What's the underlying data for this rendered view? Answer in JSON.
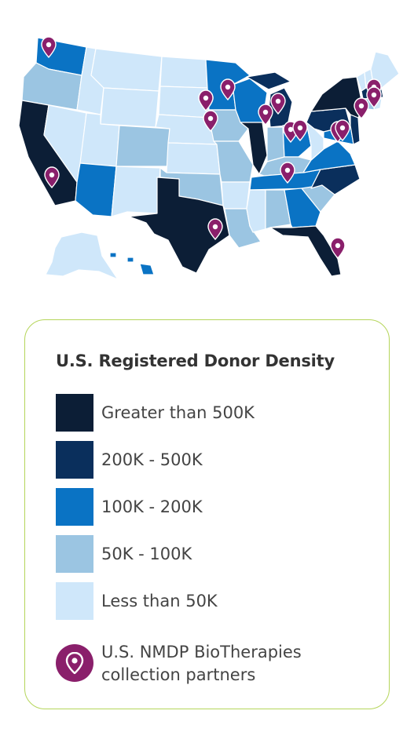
{
  "colors": {
    "greater_500k": "#0c1e36",
    "range_200k_500k": "#0a2f5c",
    "range_100k_200k": "#0a73c4",
    "range_50k_100k": "#9bc5e2",
    "less_50k": "#cfe7fa",
    "partner_pin": "#8a1f6b",
    "card_border": "#b5d55a"
  },
  "legend": {
    "title": "U.S. Registered Donor Density",
    "items": [
      {
        "label": "Greater than 500K",
        "color": "#0c1e36"
      },
      {
        "label": "200K - 500K",
        "color": "#0a2f5c"
      },
      {
        "label": "100K - 200K",
        "color": "#0a73c4"
      },
      {
        "label": "50K - 100K",
        "color": "#9bc5e2"
      },
      {
        "label": "Less than 50K",
        "color": "#cfe7fa"
      }
    ],
    "partners": {
      "line1": "U.S. NMDP BioTherapies",
      "line2": "collection partners",
      "icon": "map-pin-icon"
    }
  },
  "map": {
    "state_density": {
      "california": "Greater than 500K",
      "texas": "Greater than 500K",
      "florida": "Greater than 500K",
      "illinois": "Greater than 500K",
      "new-york": "Greater than 500K",
      "new-jersey": "200K - 500K",
      "washington": "100K - 200K",
      "arizona": "100K - 200K",
      "minnesota": "100K - 200K",
      "wisconsin": "100K - 200K",
      "michigan": "200K - 500K",
      "ohio": "100K - 200K",
      "pennsylvania": "200K - 500K",
      "virginia": "100K - 200K",
      "north-carolina": "200K - 500K",
      "georgia": "100K - 200K",
      "tennessee": "100K - 200K",
      "massachusetts": "200K - 500K",
      "maryland": "100K - 200K",
      "hawaii": "100K - 200K",
      "oregon": "50K - 100K",
      "colorado": "50K - 100K",
      "iowa": "50K - 100K",
      "missouri": "50K - 100K",
      "oklahoma": "50K - 100K",
      "indiana": "50K - 100K",
      "kentucky": "50K - 100K",
      "alabama": "50K - 100K",
      "south-carolina": "50K - 100K",
      "louisiana": "50K - 100K",
      "connecticut": "50K - 100K"
    },
    "partner_pins": [
      "washington",
      "california",
      "minnesota",
      "wisconsin",
      "iowa",
      "iowa-north",
      "michigan",
      "wisconsin-east",
      "ohio-west",
      "ohio-east",
      "tennessee",
      "texas",
      "florida",
      "pennsylvania",
      "pennsylvania-east",
      "new-york",
      "massachusetts",
      "rhode-island"
    ]
  }
}
